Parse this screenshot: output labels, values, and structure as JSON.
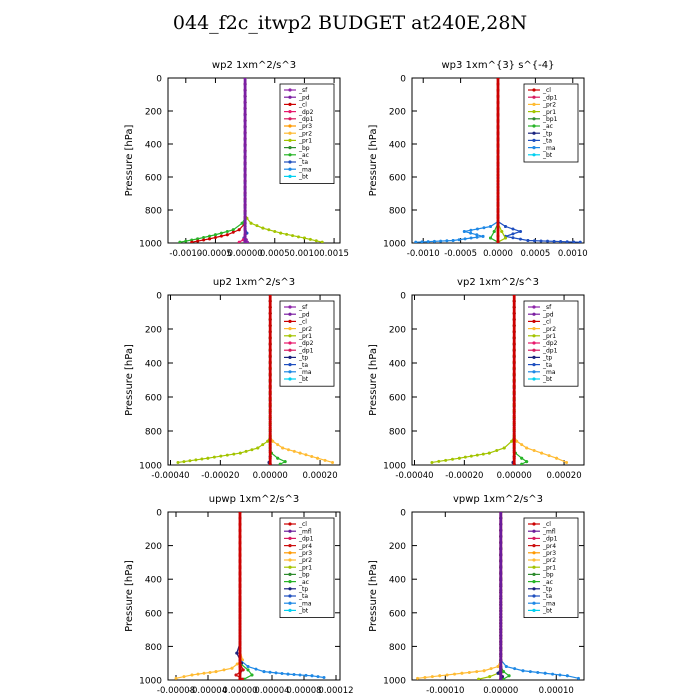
{
  "title": "044_f2c_itwp2  BUDGET at240E,28N",
  "ylabel": "Pressure [hPa]",
  "colors": {
    "sf": "#8e24aa",
    "pd": "#7b1fa2",
    "cl": "#cc0000",
    "dp2": "#e8186c",
    "dp1": "#d81b60",
    "pr3": "#ff9900",
    "pr2": "#ffbb33",
    "pr1": "#a3c400",
    "bp": "#2e8b2e",
    "bp1": "#2e8b2e",
    "ac": "#27b427",
    "ta": "#1f4fbf",
    "tp": "#1a237e",
    "ma": "#1e88e5",
    "bt": "#00d0f0",
    "mfl": "#6a1b9a",
    "pr4": "#cc1111",
    "frame": "#000000"
  },
  "chart_data": [
    {
      "type": "line",
      "title": "wp2  1xm^2/s^3",
      "xlabel": "",
      "ylabel": "Pressure [hPa]",
      "xlim": [
        -0.0013,
        0.0016
      ],
      "ylim": [
        1000,
        0
      ],
      "xticks": [
        -0.001,
        -0.0005,
        0,
        0.0005,
        0.001,
        0.0015
      ],
      "xtick_labels": [
        "-0.0010",
        "-0.0005",
        "0.00000",
        "0.0005",
        "0.0010",
        "0.0015"
      ],
      "yticks": [
        0,
        200,
        400,
        600,
        800,
        1000
      ],
      "legend": [
        "_sf",
        "_pd",
        "_cl",
        "_dp2",
        "_dp1",
        "_pr3",
        "_pr2",
        "_pr1",
        "_bp",
        "_ac",
        "_ta",
        "_ma",
        "_bt"
      ],
      "series": [
        {
          "key": "pr1",
          "x": [
            0,
            0,
            3e-05,
            0.0001,
            0.0003,
            0.0006,
            0.001,
            0.0013
          ],
          "y": [
            0,
            820,
            850,
            880,
            910,
            940,
            970,
            995
          ]
        },
        {
          "key": "ac",
          "x": [
            0,
            0,
            -5e-05,
            -0.0002,
            -0.0005,
            -0.0008,
            -0.0011
          ],
          "y": [
            0,
            850,
            880,
            920,
            950,
            975,
            995
          ]
        },
        {
          "key": "cl",
          "x": [
            0,
            0,
            -0.0001,
            -0.0003,
            -0.0006,
            -0.0009
          ],
          "y": [
            0,
            880,
            920,
            950,
            975,
            995
          ]
        },
        {
          "key": "ta",
          "x": [
            0,
            0,
            3e-05,
            -2e-05,
            0
          ],
          "y": [
            0,
            900,
            940,
            970,
            995
          ]
        },
        {
          "key": "sf",
          "x": [
            0,
            0,
            2e-05,
            4e-05
          ],
          "y": [
            0,
            950,
            980,
            995
          ]
        },
        {
          "key": "dp2",
          "x": [
            0,
            0,
            -3e-05,
            -0.0001
          ],
          "y": [
            0,
            950,
            980,
            995
          ]
        },
        {
          "key": "pd",
          "x": [
            0,
            0
          ],
          "y": [
            0,
            995
          ]
        }
      ]
    },
    {
      "type": "line",
      "title": "wp3  1xm^{3} s^{-4}",
      "xlabel": "",
      "ylabel": "Pressure [hPa]",
      "xlim": [
        -0.00115,
        0.00115
      ],
      "ylim": [
        1000,
        0
      ],
      "xticks": [
        -0.001,
        -0.0005,
        0,
        0.0005,
        0.001
      ],
      "xtick_labels": [
        "-0.0010",
        "-0.0005",
        "0.0000",
        "0.0005",
        "0.0010"
      ],
      "yticks": [
        0,
        200,
        400,
        600,
        800,
        1000
      ],
      "legend": [
        "_cl",
        "_dp1",
        "_pr2",
        "_pr1",
        "_bp1",
        "_ac",
        "_tp",
        "_ta",
        "_ma",
        "_bt"
      ],
      "series": [
        {
          "key": "ma",
          "x": [
            0,
            0,
            -0.0001,
            -0.00045,
            -0.0002,
            -0.0006,
            -0.0011
          ],
          "y": [
            0,
            870,
            900,
            930,
            960,
            985,
            995
          ]
        },
        {
          "key": "ta",
          "x": [
            0,
            0,
            0.0001,
            0.0003,
            0.0001,
            0.0004,
            0.0011
          ],
          "y": [
            0,
            870,
            900,
            930,
            960,
            985,
            995
          ]
        },
        {
          "key": "pr1",
          "x": [
            0,
            0,
            5e-05,
            0.0001,
            0
          ],
          "y": [
            0,
            880,
            930,
            970,
            995
          ]
        },
        {
          "key": "ac",
          "x": [
            0,
            0,
            -5e-05,
            -0.0001,
            0
          ],
          "y": [
            0,
            880,
            930,
            970,
            995
          ]
        },
        {
          "key": "cl",
          "x": [
            0,
            0
          ],
          "y": [
            0,
            995
          ]
        }
      ]
    },
    {
      "type": "line",
      "title": "up2  1xm^2/s^3",
      "xlabel": "",
      "ylabel": "Pressure [hPa]",
      "xlim": [
        -0.00041,
        0.00028
      ],
      "ylim": [
        1000,
        0
      ],
      "xticks": [
        -0.0004,
        -0.0002,
        0,
        0.0002
      ],
      "xtick_labels": [
        "-0.00040",
        "-0.00020",
        "0.00000",
        "0.00020"
      ],
      "yticks": [
        0,
        200,
        400,
        600,
        800,
        1000
      ],
      "legend": [
        "_sf",
        "_pd",
        "_cl",
        "_pr2",
        "_pr1",
        "_dp2",
        "_dp1",
        "_tp",
        "_ta",
        "_ma",
        "_bt"
      ],
      "series": [
        {
          "key": "pr1",
          "x": [
            0,
            0,
            -1e-05,
            -5e-05,
            -0.00012,
            -0.00025,
            -0.00037
          ],
          "y": [
            0,
            830,
            860,
            900,
            930,
            960,
            985
          ]
        },
        {
          "key": "pr2",
          "x": [
            0,
            0,
            1e-05,
            5e-05,
            0.00012,
            0.00019,
            0.00025
          ],
          "y": [
            0,
            830,
            860,
            900,
            930,
            960,
            985
          ]
        },
        {
          "key": "ac",
          "x": [
            0,
            0,
            5e-06,
            3e-05,
            6e-05,
            4e-05
          ],
          "y": [
            0,
            900,
            930,
            960,
            980,
            995
          ]
        },
        {
          "key": "tp",
          "x": [
            0,
            0,
            -5e-06,
            0
          ],
          "y": [
            0,
            950,
            985,
            995
          ]
        },
        {
          "key": "cl",
          "x": [
            0,
            0
          ],
          "y": [
            0,
            995
          ]
        }
      ]
    },
    {
      "type": "line",
      "title": "vp2  1xm^2/s^3",
      "xlabel": "",
      "ylabel": "Pressure [hPa]",
      "xlim": [
        -0.00041,
        0.00028
      ],
      "ylim": [
        1000,
        0
      ],
      "xticks": [
        -0.0004,
        -0.0002,
        0,
        0.0002
      ],
      "xtick_labels": [
        "-0.00040",
        "-0.00020",
        "0.00000",
        "0.00020"
      ],
      "yticks": [
        0,
        200,
        400,
        600,
        800,
        1000
      ],
      "legend": [
        "_sf",
        "_pd",
        "_cl",
        "_pr2",
        "_pr1",
        "_dp2",
        "_dp1",
        "_tp",
        "_ta",
        "_ma",
        "_bt"
      ],
      "series": [
        {
          "key": "pr1",
          "x": [
            0,
            0,
            -1e-05,
            -4e-05,
            -0.0001,
            -0.00022,
            -0.00033
          ],
          "y": [
            0,
            830,
            860,
            900,
            930,
            960,
            985
          ]
        },
        {
          "key": "pr2",
          "x": [
            0,
            0,
            1e-05,
            5e-05,
            0.00011,
            0.00017,
            0.00021
          ],
          "y": [
            0,
            830,
            860,
            900,
            930,
            960,
            985
          ]
        },
        {
          "key": "ac",
          "x": [
            0,
            0,
            5e-06,
            3e-05,
            5e-05,
            3e-05
          ],
          "y": [
            0,
            900,
            930,
            960,
            980,
            995
          ]
        },
        {
          "key": "tp",
          "x": [
            0,
            0,
            -5e-06,
            0
          ],
          "y": [
            0,
            950,
            985,
            995
          ]
        },
        {
          "key": "cl",
          "x": [
            0,
            0
          ],
          "y": [
            0,
            995
          ]
        }
      ]
    },
    {
      "type": "line",
      "title": "upwp  1xm^2/s^3",
      "xlabel": "",
      "ylabel": "Pressure [hPa]",
      "xlim": [
        -9e-05,
        0.000125
      ],
      "ylim": [
        1000,
        0
      ],
      "xticks": [
        -8e-05,
        -4e-05,
        0,
        4e-05,
        8e-05,
        0.00012
      ],
      "xtick_labels": [
        "-0.00008",
        "-0.00004",
        "0.00000",
        "0.00004",
        "0.00008",
        "0.00012"
      ],
      "yticks": [
        0,
        200,
        400,
        600,
        800,
        1000
      ],
      "legend": [
        "_cl",
        "_mfl",
        "_dp1",
        "_pr4",
        "_pr3",
        "_pr2",
        "_pr1",
        "_bp",
        "_ac",
        "_tp",
        "_ta",
        "_ma",
        "_bt"
      ],
      "series": [
        {
          "key": "pr2",
          "x": [
            0,
            0,
            3e-06,
            -1e-05,
            -3e-05,
            -6e-05,
            -8e-05
          ],
          "y": [
            0,
            820,
            880,
            930,
            950,
            970,
            990
          ]
        },
        {
          "key": "ma",
          "x": [
            0,
            0,
            1e-05,
            3e-05,
            6e-05,
            9e-05,
            0.000105
          ],
          "y": [
            0,
            880,
            920,
            950,
            965,
            975,
            985
          ]
        },
        {
          "key": "tp",
          "x": [
            0,
            0,
            -4e-06,
            2e-06,
            0
          ],
          "y": [
            0,
            780,
            840,
            900,
            995
          ]
        },
        {
          "key": "ac",
          "x": [
            0,
            0,
            1e-05,
            1.5e-05,
            5e-06
          ],
          "y": [
            0,
            900,
            940,
            970,
            995
          ]
        },
        {
          "key": "pr4",
          "x": [
            0,
            0,
            4e-06,
            -5e-06,
            3e-06
          ],
          "y": [
            0,
            900,
            940,
            970,
            995
          ]
        },
        {
          "key": "pr3",
          "x": [
            0,
            0
          ],
          "y": [
            0,
            250
          ]
        },
        {
          "key": "cl",
          "x": [
            0,
            0
          ],
          "y": [
            0,
            995
          ]
        }
      ]
    },
    {
      "type": "line",
      "title": "vpwp  1xm^2/s^3",
      "xlabel": "",
      "ylabel": "Pressure [hPa]",
      "xlim": [
        -0.00016,
        0.00015
      ],
      "ylim": [
        1000,
        0
      ],
      "xticks": [
        -0.0001,
        0,
        0.0001
      ],
      "xtick_labels": [
        "-0.00010",
        "0.00000",
        "0.00010"
      ],
      "yticks": [
        0,
        200,
        400,
        600,
        800,
        1000
      ],
      "legend": [
        "_cl",
        "_mfl",
        "_dp1",
        "_pr4",
        "_pr3",
        "_pr2",
        "_pr1",
        "_bp",
        "_ac",
        "_tp",
        "_ta",
        "_ma",
        "_bt"
      ],
      "series": [
        {
          "key": "pr2",
          "x": [
            0,
            0,
            -5e-06,
            -3e-05,
            -7e-05,
            -0.00011,
            -0.00015
          ],
          "y": [
            0,
            880,
            920,
            945,
            960,
            975,
            990
          ]
        },
        {
          "key": "ma",
          "x": [
            0,
            0,
            1e-05,
            4e-05,
            8e-05,
            0.00012,
            0.00014
          ],
          "y": [
            0,
            880,
            920,
            945,
            960,
            975,
            990
          ]
        },
        {
          "key": "pr1",
          "x": [
            0,
            0,
            -5e-06,
            -2e-05,
            -4e-05
          ],
          "y": [
            0,
            930,
            960,
            980,
            995
          ]
        },
        {
          "key": "ac",
          "x": [
            0,
            0,
            5e-06,
            1.5e-05,
            5e-06
          ],
          "y": [
            0,
            920,
            950,
            975,
            995
          ]
        },
        {
          "key": "tp",
          "x": [
            0,
            0,
            -5e-06,
            3e-06,
            0
          ],
          "y": [
            0,
            930,
            960,
            980,
            995
          ]
        },
        {
          "key": "cl",
          "x": [
            0,
            0
          ],
          "y": [
            0,
            995
          ]
        },
        {
          "key": "mfl",
          "x": [
            0,
            0
          ],
          "y": [
            0,
            995
          ]
        }
      ]
    }
  ]
}
